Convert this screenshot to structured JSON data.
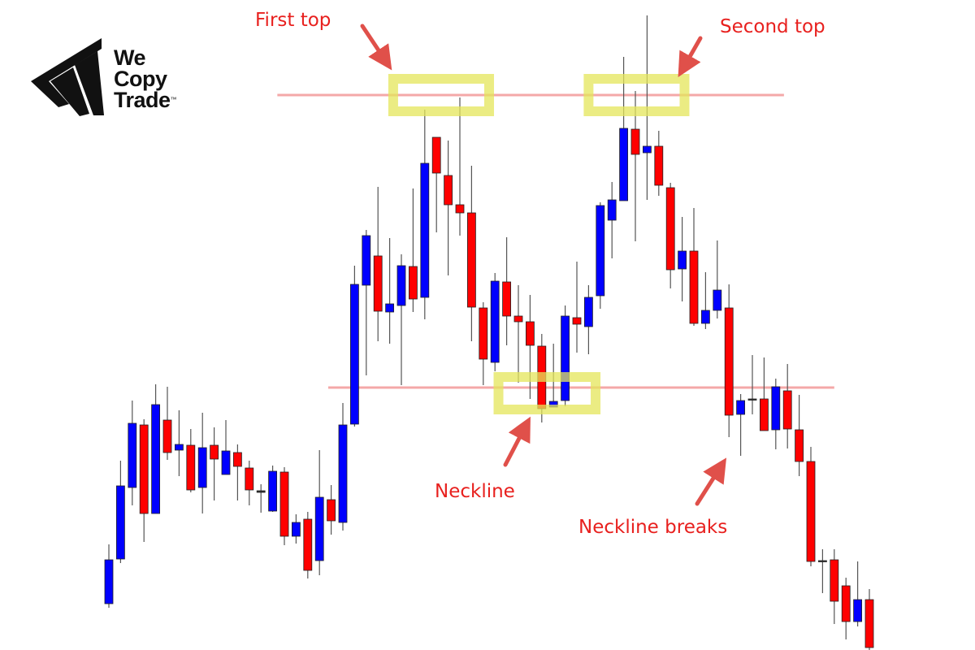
{
  "logo": {
    "line1": "We",
    "line2": "Copy",
    "line3": "Trade",
    "tm": "™"
  },
  "colors": {
    "bullish": "#0000ff",
    "bearish": "#ff0000",
    "annotation_text": "#e8201e",
    "arrow": "#e0504a",
    "level_line": "#f4a8a8",
    "highlight": "#e4e65a"
  },
  "annotations": {
    "first_top": "First top",
    "second_top": "Second top",
    "neckline": "Neckline",
    "neckline_breaks": "Neckline breaks"
  },
  "chart_data": {
    "type": "candlestick",
    "title": "",
    "xlabel": "",
    "ylabel": "",
    "axes_visible": false,
    "grid": false,
    "price_units": "arbitrary (no axis shown)",
    "ylim": [
      0,
      80
    ],
    "ohlc_fields": [
      "open",
      "high",
      "low",
      "close"
    ],
    "candles": [
      [
        5.7,
        13.0,
        5.2,
        11.1
      ],
      [
        11.2,
        23.3,
        10.7,
        20.2
      ],
      [
        20.0,
        30.7,
        17.8,
        27.9
      ],
      [
        27.7,
        28.4,
        13.3,
        16.8
      ],
      [
        16.8,
        32.7,
        16.8,
        30.2
      ],
      [
        28.3,
        32.4,
        23.4,
        24.3
      ],
      [
        24.6,
        29.5,
        21.4,
        25.3
      ],
      [
        25.2,
        27.2,
        19.4,
        19.7
      ],
      [
        20.0,
        29.2,
        16.8,
        24.9
      ],
      [
        25.2,
        27.4,
        18.4,
        23.5
      ],
      [
        21.6,
        28.3,
        21.6,
        24.5
      ],
      [
        24.3,
        25.3,
        18.4,
        22.6
      ],
      [
        22.4,
        23.3,
        17.8,
        19.7
      ],
      [
        19.6,
        20.4,
        16.9,
        19.4
      ],
      [
        17.1,
        22.7,
        17.0,
        22.0
      ],
      [
        21.9,
        22.5,
        12.9,
        14.0
      ],
      [
        14.0,
        16.7,
        13.1,
        15.7
      ],
      [
        16.1,
        17.0,
        8.8,
        9.8
      ],
      [
        11.0,
        24.6,
        9.2,
        18.8
      ],
      [
        18.5,
        20.3,
        14.2,
        15.9
      ],
      [
        15.7,
        30.4,
        14.7,
        27.7
      ],
      [
        27.8,
        47.3,
        27.5,
        45.0
      ],
      [
        44.9,
        51.7,
        33.8,
        51.0
      ],
      [
        48.5,
        57.0,
        38.0,
        41.7
      ],
      [
        41.6,
        50.7,
        37.7,
        42.6
      ],
      [
        42.4,
        48.7,
        32.6,
        47.3
      ],
      [
        47.2,
        56.8,
        41.6,
        43.2
      ],
      [
        43.4,
        66.5,
        40.7,
        59.9
      ],
      [
        63.1,
        63.1,
        51.4,
        58.7
      ],
      [
        58.4,
        62.7,
        46.1,
        54.8
      ],
      [
        54.8,
        68.0,
        51.0,
        53.8
      ],
      [
        53.8,
        59.6,
        38.0,
        42.2
      ],
      [
        42.1,
        42.8,
        32.6,
        35.8
      ],
      [
        35.4,
        46.4,
        34.3,
        45.4
      ],
      [
        45.3,
        50.8,
        37.5,
        41.1
      ],
      [
        41.1,
        44.9,
        32.9,
        40.4
      ],
      [
        40.4,
        43.7,
        30.9,
        37.5
      ],
      [
        37.4,
        38.9,
        28.0,
        29.7
      ],
      [
        29.9,
        37.7,
        30.0,
        30.6
      ],
      [
        30.7,
        42.4,
        30.0,
        41.1
      ],
      [
        40.9,
        47.8,
        36.6,
        40.1
      ],
      [
        39.8,
        44.9,
        36.4,
        43.4
      ],
      [
        43.6,
        55.1,
        42.0,
        54.7
      ],
      [
        52.9,
        57.6,
        48.2,
        55.4
      ],
      [
        55.3,
        73.0,
        55.3,
        64.2
      ],
      [
        64.1,
        68.8,
        50.3,
        61.0
      ],
      [
        61.2,
        78.1,
        55.4,
        62.0
      ],
      [
        62.0,
        63.9,
        55.9,
        57.2
      ],
      [
        56.9,
        57.5,
        44.5,
        46.8
      ],
      [
        46.9,
        53.3,
        42.9,
        49.1
      ],
      [
        49.1,
        54.4,
        39.9,
        40.2
      ],
      [
        40.2,
        46.5,
        39.5,
        41.8
      ],
      [
        41.8,
        50.4,
        40.8,
        44.3
      ],
      [
        42.1,
        45.0,
        26.2,
        28.9
      ],
      [
        29.0,
        31.5,
        23.9,
        30.7
      ],
      [
        30.8,
        36.3,
        29.0,
        30.9
      ],
      [
        30.9,
        36.0,
        27.0,
        27.0
      ],
      [
        27.1,
        33.4,
        24.7,
        32.4
      ],
      [
        31.9,
        35.2,
        24.8,
        27.2
      ],
      [
        27.1,
        31.4,
        21.4,
        23.2
      ],
      [
        23.2,
        25.0,
        10.3,
        10.9
      ],
      [
        11.0,
        12.4,
        7.0,
        10.9
      ],
      [
        11.1,
        12.4,
        3.2,
        6.0
      ],
      [
        7.9,
        8.9,
        1.3,
        3.5
      ],
      [
        3.5,
        10.9,
        2.9,
        6.2
      ],
      [
        6.2,
        7.5,
        0.0,
        0.3
      ]
    ],
    "levels": [
      {
        "name": "tops-resistance",
        "price": 68.3,
        "from_candle": 14.4,
        "to_candle": 57.7
      },
      {
        "name": "neckline",
        "price": 32.3,
        "from_candle": 18.75,
        "to_candle": 62.0
      }
    ],
    "highlights": [
      {
        "name": "first-top-highlight",
        "price": 68.3,
        "from_candle": 24.3,
        "to_candle": 32.5
      },
      {
        "name": "second-top-highlight",
        "price": 68.3,
        "from_candle": 41.0,
        "to_candle": 49.2
      },
      {
        "name": "neckline-highlight",
        "price": 31.6,
        "from_candle": 33.3,
        "to_candle": 41.6
      }
    ]
  }
}
